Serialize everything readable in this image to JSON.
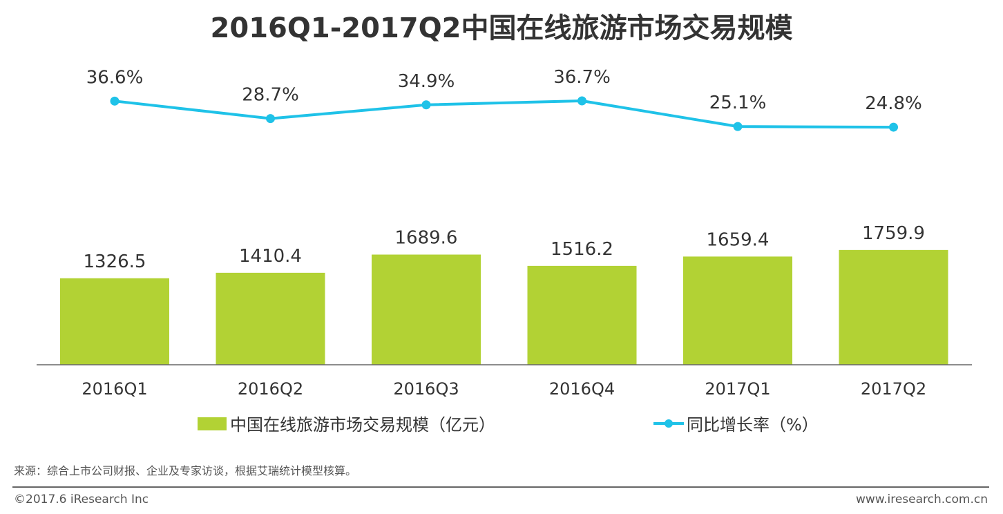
{
  "chart_data": {
    "type": "bar+line",
    "title": "2016Q1-2017Q2中国在线旅游市场交易规模",
    "categories": [
      "2016Q1",
      "2016Q2",
      "2016Q3",
      "2016Q4",
      "2017Q1",
      "2017Q2"
    ],
    "series": [
      {
        "name": "中国在线旅游市场交易规模（亿元）",
        "type": "bar",
        "values": [
          1326.5,
          1410.4,
          1689.6,
          1516.2,
          1659.4,
          1759.9
        ],
        "labels": [
          "1326.5",
          "1410.4",
          "1689.6",
          "1516.2",
          "1659.4",
          "1759.9"
        ],
        "color": "#b2d234"
      },
      {
        "name": "同比增长率（%）",
        "type": "line",
        "values": [
          36.6,
          28.7,
          34.9,
          36.7,
          25.1,
          24.8
        ],
        "labels": [
          "36.6%",
          "28.7%",
          "34.9%",
          "36.7%",
          "25.1%",
          "24.8%"
        ],
        "color": "#1fc2e8"
      }
    ],
    "bar_ylim": [
      0,
      2000
    ],
    "line_ylim": [
      0,
      45
    ],
    "legend": "bottom",
    "grid": false
  },
  "footer": {
    "source": "来源：综合上市公司财报、企业及专家访谈，根据艾瑞统计模型核算。",
    "copyright": "©2017.6 iResearch Inc",
    "website": "www.iresearch.com.cn"
  }
}
